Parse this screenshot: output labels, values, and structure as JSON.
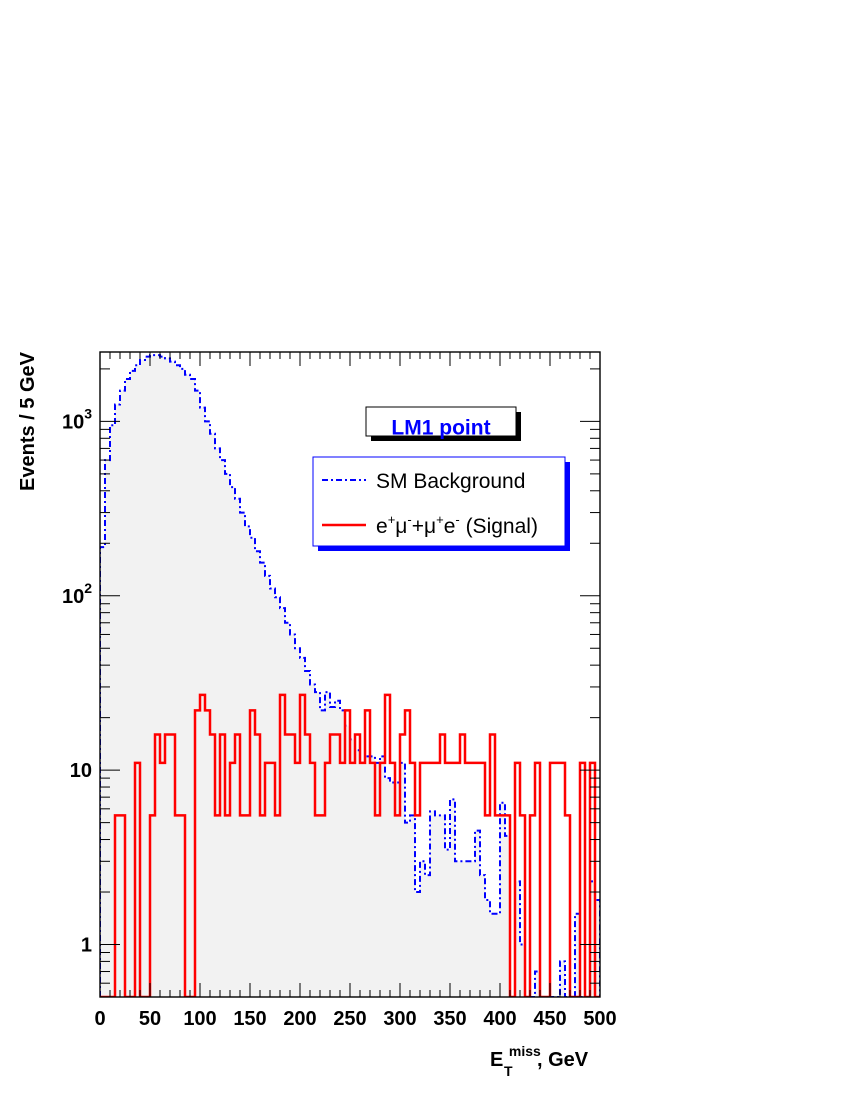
{
  "chart_data": {
    "type": "histogram",
    "x_scale": "linear",
    "y_scale": "log",
    "xlim": [
      0,
      500
    ],
    "ylim": [
      0.5,
      2500
    ],
    "bin_width": 5,
    "xlabel": {
      "main": "E",
      "sup": "miss",
      "sub": "T",
      "suffix": ", GeV"
    },
    "ylabel": "Events / 5 GeV",
    "x_ticks": [
      0,
      50,
      100,
      150,
      200,
      250,
      300,
      350,
      400,
      450,
      500
    ],
    "x_tick_labels": [
      "0",
      "50",
      "100",
      "150",
      "200",
      "250",
      "300",
      "350",
      "400",
      "450",
      "500"
    ],
    "y_ticks": [
      {
        "value": 1,
        "base": "1",
        "exp": ""
      },
      {
        "value": 10,
        "base": "10",
        "exp": ""
      },
      {
        "value": 100,
        "base": "10",
        "exp": "2"
      },
      {
        "value": 1000,
        "base": "10",
        "exp": "3"
      }
    ],
    "badge": "LM1 point",
    "legend_position": "top-right",
    "series": [
      {
        "name": "SM Background",
        "style": "dash-dot",
        "color": "#0000ff",
        "fill": "#f2f2f2",
        "values": [
          190,
          600,
          950,
          1250,
          1500,
          1750,
          1950,
          2100,
          2250,
          2350,
          2400,
          2400,
          2350,
          2300,
          2200,
          2100,
          2000,
          1850,
          1750,
          1500,
          1200,
          1000,
          850,
          700,
          600,
          500,
          420,
          360,
          300,
          250,
          215,
          180,
          155,
          130,
          110,
          98,
          85,
          70,
          60,
          50,
          44,
          37,
          31,
          28,
          22,
          28,
          23,
          25,
          22,
          18,
          15,
          13,
          11,
          12,
          12,
          11,
          12,
          9,
          8.5,
          8.5,
          11,
          5,
          5.5,
          2,
          3,
          2.5,
          5.8,
          5.5,
          5.5,
          3.5,
          6.8,
          3,
          3,
          3,
          3,
          4.5,
          2.5,
          1.8,
          1.5,
          1.5,
          6.5,
          4.2,
          0,
          2.3,
          1,
          0.5,
          0.5,
          0.7,
          0.5,
          0.5,
          0.5,
          0.5,
          0.8,
          0.5,
          0.5,
          1.5,
          0.5,
          0.5,
          2.3,
          1.8
        ]
      },
      {
        "name": "e⁺μ⁻+μ⁺e⁻ (Signal)",
        "legend_parts": {
          "e": "e",
          "p": "+",
          "mu": "μ",
          "m": "-",
          "plus": "+",
          "tail": " (Signal)"
        },
        "style": "solid",
        "color": "#ff0000",
        "values": [
          0,
          0,
          0,
          5.5,
          5.5,
          0,
          0,
          11,
          0,
          0,
          5.5,
          16,
          11,
          16,
          16,
          5.5,
          5.5,
          0,
          0,
          22,
          27,
          22,
          16,
          5.5,
          16,
          5.5,
          11,
          16,
          5.5,
          5.5,
          22,
          16,
          5.5,
          11,
          11,
          5.5,
          27,
          16,
          16,
          11,
          27,
          16,
          11,
          5.5,
          5.5,
          11,
          16,
          16,
          11,
          22,
          11,
          16,
          11,
          22,
          11,
          5.5,
          11,
          27,
          11,
          5.5,
          16,
          22,
          11,
          5.5,
          11,
          11,
          11,
          11,
          16,
          11,
          11,
          11,
          16,
          11,
          11,
          11,
          11,
          5.5,
          16,
          5.5,
          5.5,
          5.5,
          0,
          11,
          5.5,
          0,
          5.5,
          11,
          0,
          0,
          11,
          11,
          11,
          5.5,
          0,
          0,
          11,
          0,
          11,
          0
        ]
      }
    ]
  }
}
